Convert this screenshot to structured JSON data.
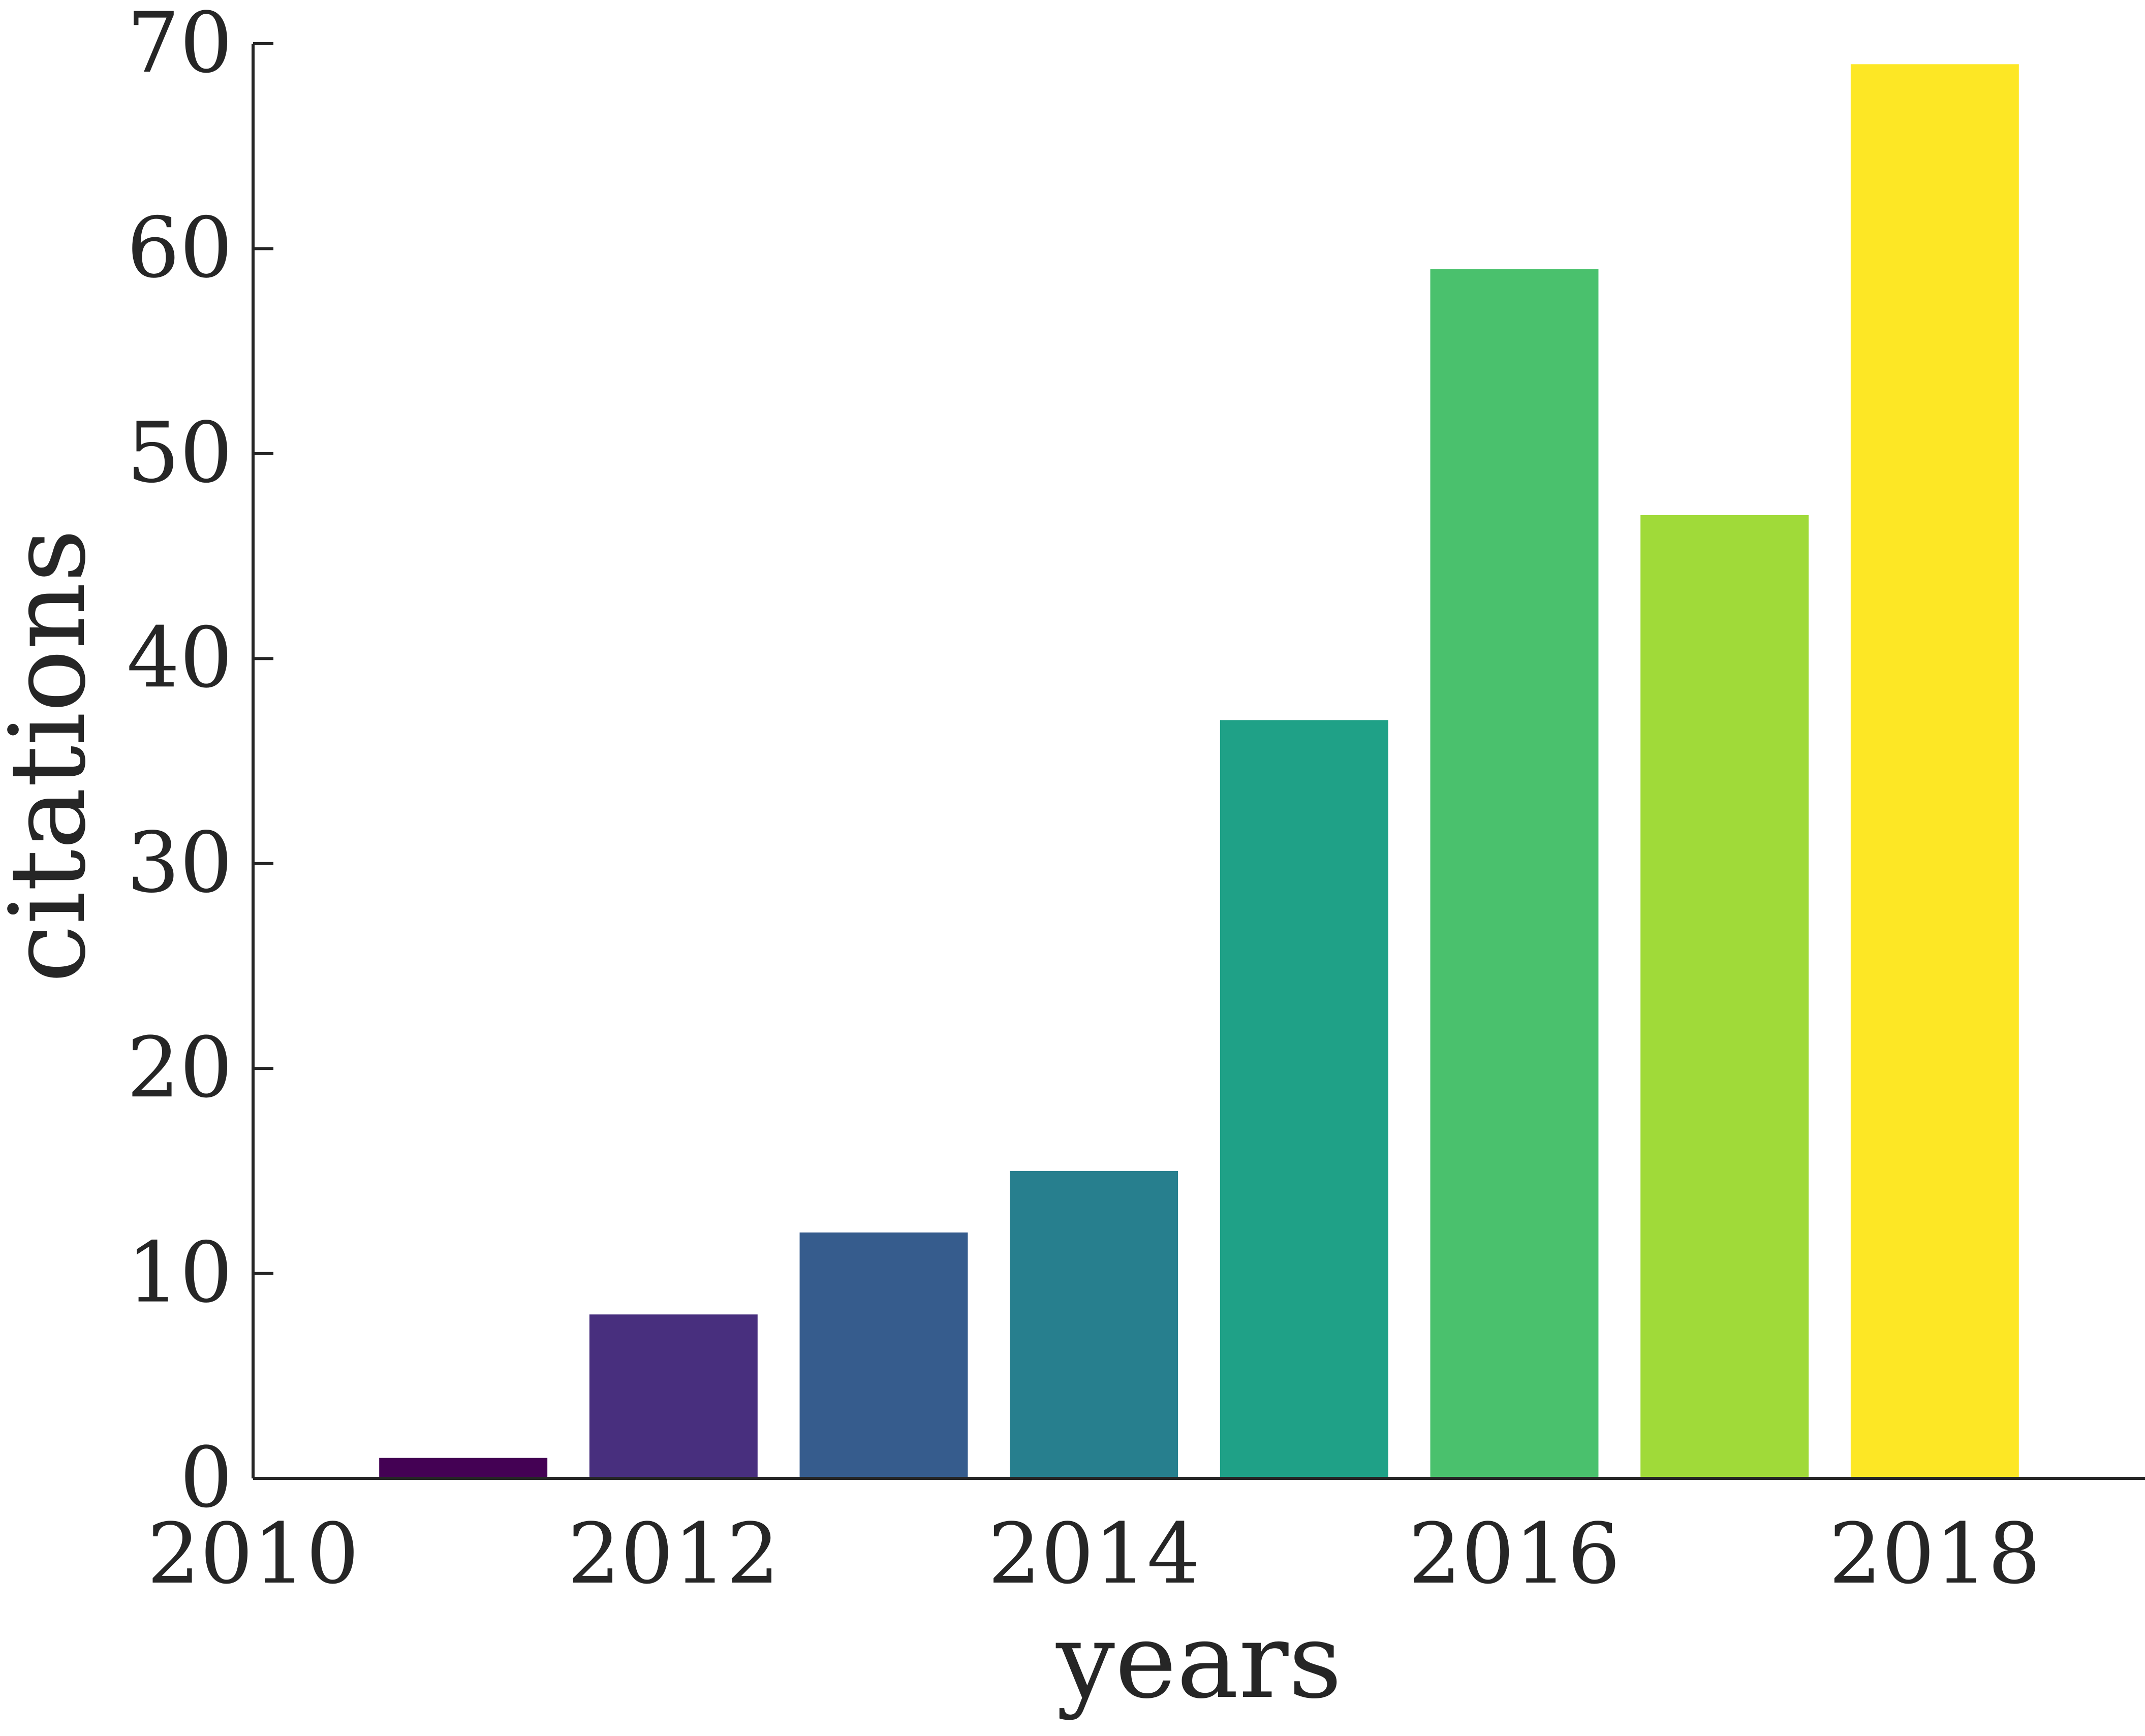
{
  "chart_data": {
    "type": "bar",
    "categories": [
      "2011",
      "2012",
      "2013",
      "2014",
      "2015",
      "2016",
      "2017",
      "2018"
    ],
    "x": [
      2011,
      2012,
      2013,
      2014,
      2015,
      2016,
      2017,
      2018
    ],
    "values": [
      1,
      8,
      12,
      15,
      37,
      59,
      47,
      69
    ],
    "bar_colors": [
      "#440154",
      "#482f7e",
      "#365c8d",
      "#277f8e",
      "#1fa187",
      "#4ac16d",
      "#a0da39",
      "#fde725"
    ],
    "xlabel": "years",
    "ylabel": "citations",
    "xlim": [
      2010,
      2019
    ],
    "ylim": [
      0,
      70
    ],
    "xticks": [
      2010,
      2012,
      2014,
      2016,
      2018
    ],
    "yticks": [
      0,
      10,
      20,
      30,
      40,
      50,
      60,
      70
    ],
    "grid": false,
    "legend": "none",
    "axis_color": "#262626"
  }
}
